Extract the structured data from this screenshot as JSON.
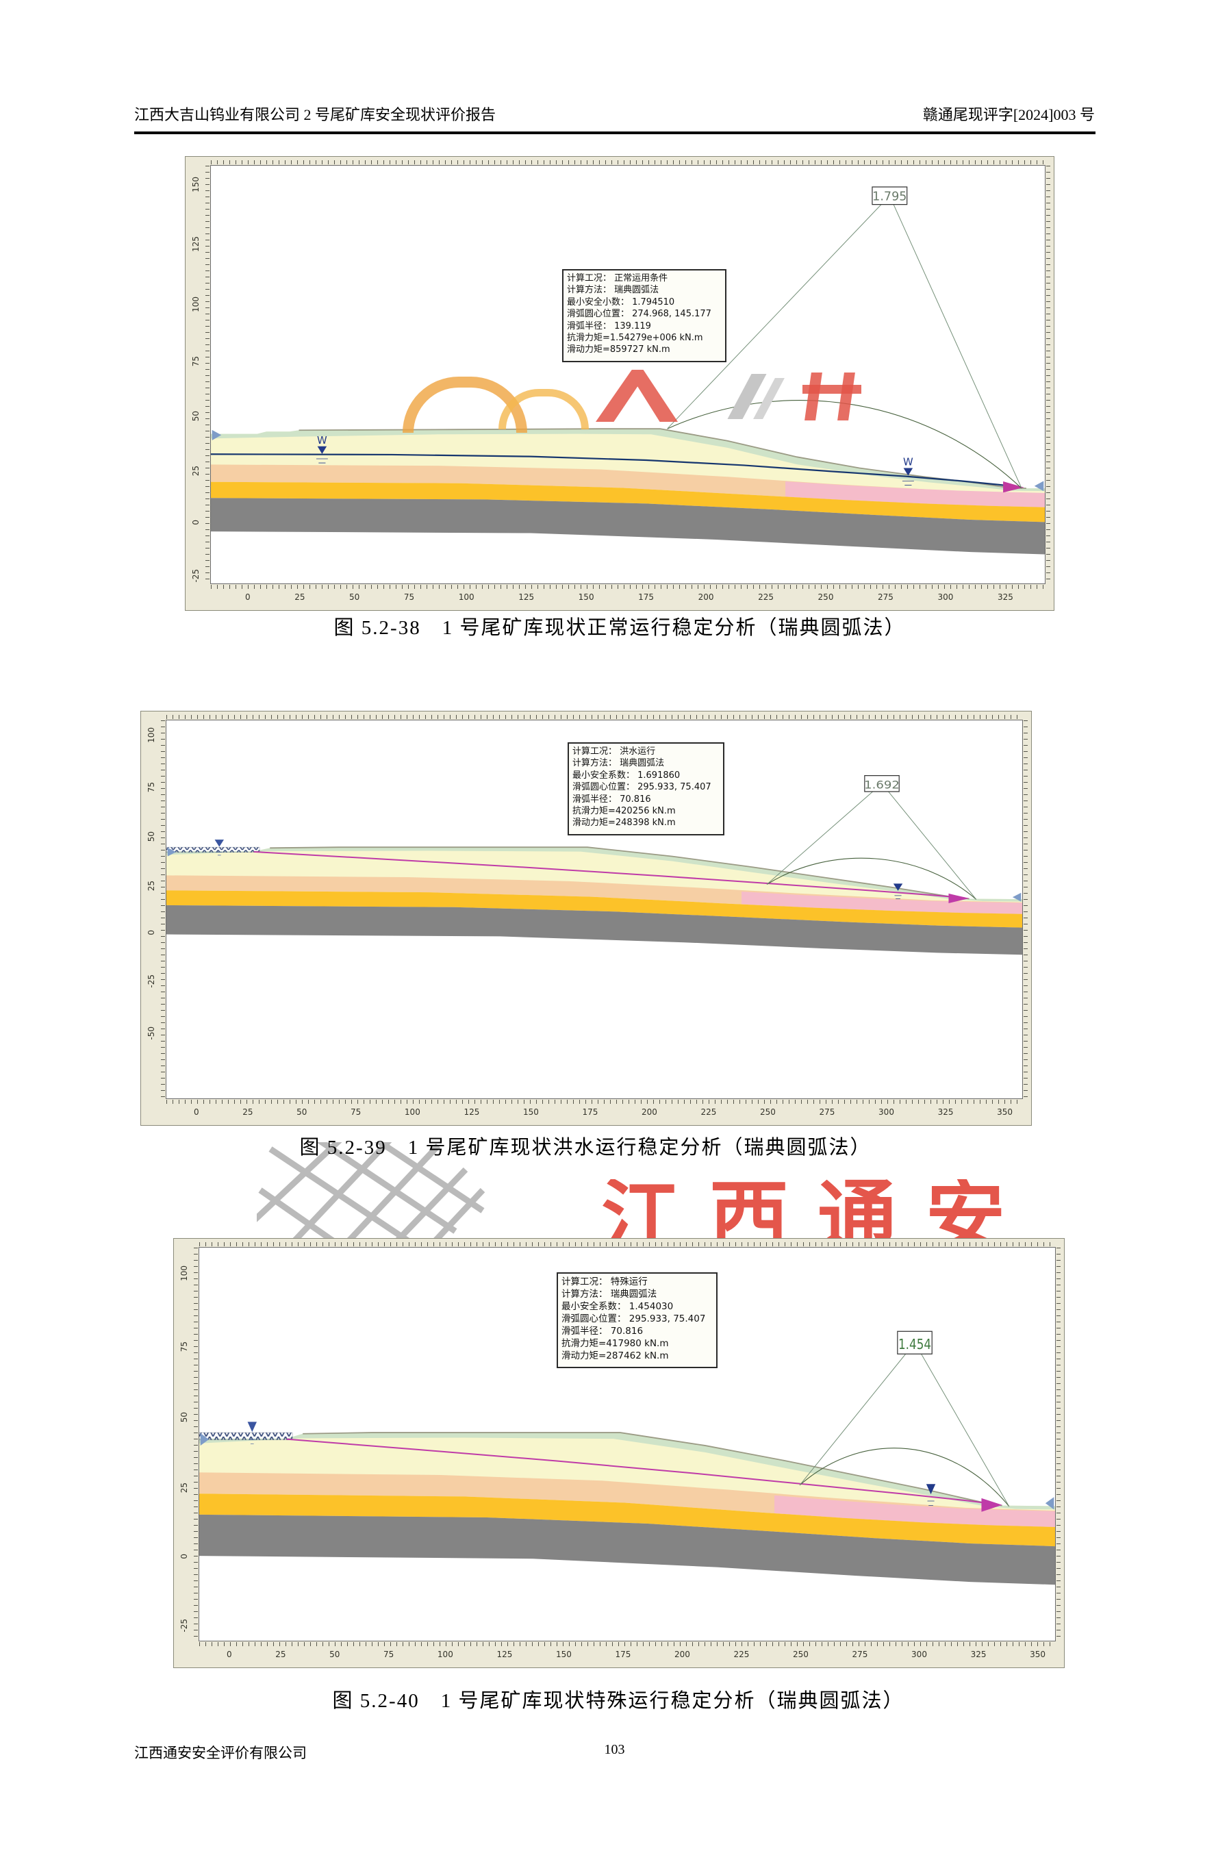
{
  "page": {
    "header_left": "江西大吉山钨业有限公司 2 号尾矿库安全现状评价报告",
    "header_right": "赣通尾现评字[2024]003 号",
    "footer_company": "江西通安安全评价有限公司",
    "page_number": "103",
    "watermark_text": "江西通安"
  },
  "colors": {
    "frame_beige": "#ece9d8",
    "layer_green": "#cfe3c8",
    "layer_cream": "#f8f6cd",
    "layer_peach": "#f6cfa4",
    "layer_pink": "#f5bcca",
    "layer_gold": "#fcc229",
    "layer_gray": "#848484",
    "phreatic_normal_line": "#16366e",
    "phreatic_flood_line": "#bf3ba8",
    "slip_circle": "#46603c",
    "watermark_red": "#e2483c"
  },
  "charts": [
    {
      "caption": "图 5.2-38　1 号尾矿库现状正常运行稳定分析（瑞典圆弧法）",
      "factor": "1.795",
      "water_marker": "W",
      "info": [
        "计算工况： 正常运用条件",
        "计算方法： 瑞典圆弧法",
        "最小安全小数：  1.794510",
        "滑弧圆心位置：  274.968, 145.177",
        "滑弧半径：  139.119",
        "抗滑力矩=1.54279e+006 kN.m",
        "滑动力矩=859727 kN.m"
      ],
      "x_ticks": [
        "0",
        "25",
        "50",
        "75",
        "100",
        "125",
        "150",
        "175",
        "200",
        "225",
        "250",
        "275",
        "300",
        "325"
      ],
      "y_ticks": [
        "150",
        "125",
        "100",
        "75",
        "50",
        "25",
        "0",
        "-25"
      ]
    },
    {
      "caption": "图 5.2-39　1 号尾矿库现状洪水运行稳定分析（瑞典圆弧法）",
      "factor": "1.692",
      "info": [
        "计算工况： 洪水运行",
        "计算方法： 瑞典圆弧法",
        "最小安全系数：  1.691860",
        "滑弧圆心位置：  295.933, 75.407",
        "滑弧半径：  70.816",
        "抗滑力矩=420256 kN.m",
        "滑动力矩=248398 kN.m"
      ],
      "x_ticks": [
        "0",
        "25",
        "50",
        "75",
        "100",
        "125",
        "150",
        "175",
        "200",
        "225",
        "250",
        "275",
        "300",
        "325",
        "350"
      ],
      "y_ticks": [
        "100",
        "75",
        "50",
        "25",
        "0",
        "-25",
        "-50"
      ]
    },
    {
      "caption": "图 5.2-40　1 号尾矿库现状特殊运行稳定分析（瑞典圆弧法）",
      "factor": "1.454",
      "info": [
        "计算工况： 特殊运行",
        "计算方法： 瑞典圆弧法",
        "最小安全系数：  1.454030",
        "滑弧圆心位置：  295.933, 75.407",
        "滑弧半径：  70.816",
        "抗滑力矩=417980 kN.m",
        "滑动力矩=287462 kN.m"
      ],
      "x_ticks": [
        "0",
        "25",
        "50",
        "75",
        "100",
        "125",
        "150",
        "175",
        "200",
        "225",
        "250",
        "275",
        "300",
        "325",
        "350"
      ],
      "y_ticks": [
        "100",
        "75",
        "50",
        "25",
        "0",
        "-25"
      ]
    }
  ]
}
